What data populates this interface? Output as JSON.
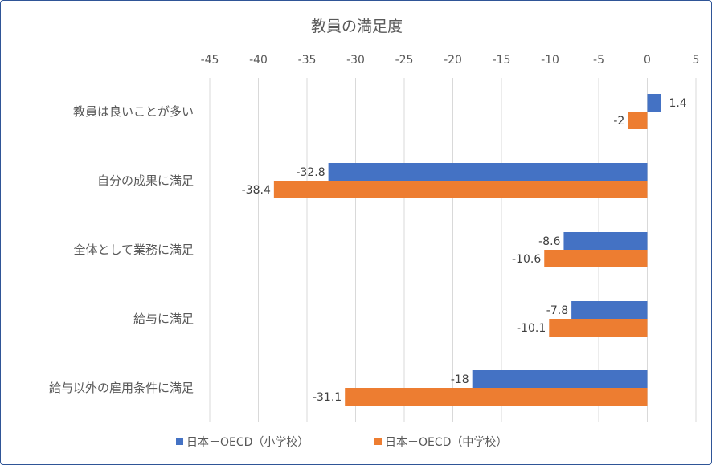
{
  "chart_data": {
    "type": "bar",
    "orientation": "horizontal",
    "title": "教員の満足度",
    "xlim": [
      -45,
      5
    ],
    "xticks": [
      "-45",
      "-40",
      "-35",
      "-30",
      "-25",
      "-20",
      "-15",
      "-10",
      "-5",
      "0",
      "5"
    ],
    "grid": true,
    "legend_position": "bottom",
    "categories": [
      "教員は良いことが多い",
      "自分の成果に満足",
      "全体として業務に満足",
      "給与に満足",
      "給与以外の雇用条件に満足"
    ],
    "series": [
      {
        "name": "日本－OECD（小学校）",
        "color": "#4472c4",
        "values": [
          1.4,
          -32.8,
          -8.6,
          -7.8,
          -18
        ],
        "labels": [
          "1.4",
          "-32.8",
          "-8.6",
          "-7.8",
          "-18"
        ]
      },
      {
        "name": "日本－OECD（中学校）",
        "color": "#ed7d31",
        "values": [
          -2,
          -38.4,
          -10.6,
          -10.1,
          -31.1
        ],
        "labels": [
          "-2",
          "-38.4",
          "-10.6",
          "-10.1",
          "-31.1"
        ]
      }
    ]
  }
}
